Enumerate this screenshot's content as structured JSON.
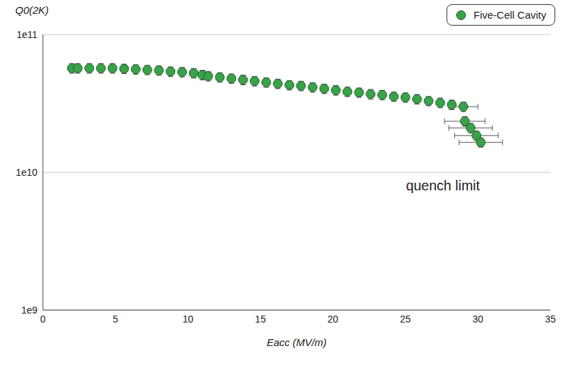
{
  "chart_data": {
    "type": "scatter",
    "x_label": "Eacc (MV/m)",
    "y_label": "Q0(2K)",
    "log": "y",
    "grid": true,
    "legend": "top-right",
    "xlim": [
      0,
      35
    ],
    "xticks": [
      0,
      5,
      10,
      15,
      20,
      25,
      30,
      35
    ],
    "ylim": [
      1000000000.0,
      100000000000.0
    ],
    "yticks": [
      {
        "value": 1000000000.0,
        "label": "1e9"
      },
      {
        "value": 10000000000.0,
        "label": "1e10"
      },
      {
        "value": 100000000000.0,
        "label": "1e11"
      }
    ],
    "x": [
      2.0,
      2.4,
      3.2,
      4.0,
      4.8,
      5.6,
      6.4,
      7.2,
      8.0,
      8.8,
      9.6,
      10.4,
      11.0,
      11.4,
      12.2,
      13.0,
      13.8,
      14.6,
      15.4,
      16.2,
      17.0,
      17.8,
      18.6,
      19.4,
      20.2,
      21.0,
      21.8,
      22.6,
      23.4,
      24.2,
      25.0,
      25.8,
      26.6,
      27.4,
      28.2,
      29.0,
      29.1,
      29.5,
      29.9,
      30.2
    ],
    "series": [
      {
        "name": "Five-Cell Cavity",
        "color": "#3aa34a",
        "marker": "circle",
        "values": [
          57000000000.0,
          57000000000.0,
          57000000000.0,
          57000000000.0,
          57000000000.0,
          56500000000.0,
          56000000000.0,
          55500000000.0,
          55000000000.0,
          54000000000.0,
          53500000000.0,
          52500000000.0,
          51000000000.0,
          50000000000.0,
          49000000000.0,
          48000000000.0,
          47000000000.0,
          46000000000.0,
          45000000000.0,
          44000000000.0,
          43000000000.0,
          42500000000.0,
          41500000000.0,
          40500000000.0,
          39500000000.0,
          38500000000.0,
          38000000000.0,
          37000000000.0,
          36500000000.0,
          35500000000.0,
          35000000000.0,
          34000000000.0,
          33000000000.0,
          32000000000.0,
          31000000000.0,
          30000000000.0,
          23500000000.0,
          21000000000.0,
          18500000000.0,
          16500000000.0
        ],
        "y_err": [
          4600000000.0,
          4600000000.0,
          4600000000.0,
          4600000000.0,
          4600000000.0,
          4500000000.0,
          4500000000.0,
          4400000000.0,
          4400000000.0,
          4300000000.0,
          4300000000.0,
          4200000000.0,
          4100000000.0,
          4000000000.0,
          3900000000.0,
          3800000000.0,
          3800000000.0,
          3700000000.0,
          3600000000.0,
          3500000000.0,
          3400000000.0,
          3400000000.0,
          3300000000.0,
          3200000000.0,
          3200000000.0,
          3100000000.0,
          3000000000.0,
          3000000000.0,
          2900000000.0,
          2800000000.0,
          2800000000.0,
          2700000000.0,
          2600000000.0,
          2600000000.0,
          2500000000.0,
          2400000000.0,
          1900000000.0,
          1700000000.0,
          1500000000.0,
          1300000000.0
        ],
        "x_err": [
          0,
          0,
          0,
          0,
          0,
          0,
          0,
          0,
          0,
          0,
          0,
          0,
          0,
          0,
          0,
          0,
          0,
          0,
          0,
          0,
          0,
          0,
          0,
          0,
          0,
          0,
          0,
          0,
          0,
          0,
          0,
          0,
          0,
          0,
          0,
          1.0,
          1.4,
          1.5,
          1.5,
          1.5
        ]
      }
    ],
    "annotations": [
      {
        "text": "quench limit",
        "x": 24.8,
        "y": 8000000000.0
      }
    ]
  }
}
